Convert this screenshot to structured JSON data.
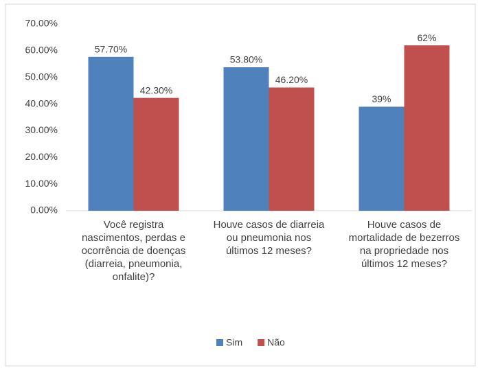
{
  "chart_data": {
    "type": "bar",
    "categories": [
      "Você registra nascimentos, perdas e ocorrência de doenças (diarreia, pneumonia, onfalite)?",
      "Houve casos de diarreia ou pneumonia nos últimos 12 meses?",
      "Houve casos de mortalidade de bezerros na propriedade nos últimos 12 meses?"
    ],
    "series": [
      {
        "name": "Sim",
        "color": "#4f81bd",
        "values": [
          57.7,
          53.8,
          39
        ],
        "value_labels": [
          "57.70%",
          "53.80%",
          "39%"
        ]
      },
      {
        "name": "Não",
        "color": "#c0504d",
        "values": [
          42.3,
          46.2,
          62
        ],
        "value_labels": [
          "42.30%",
          "46.20%",
          "62%"
        ]
      }
    ],
    "ylim": [
      0,
      70
    ],
    "yticks": [
      {
        "value": 0,
        "label": "0.00%"
      },
      {
        "value": 10,
        "label": "10.00%"
      },
      {
        "value": 20,
        "label": "20.00%"
      },
      {
        "value": 30,
        "label": "30.00%"
      },
      {
        "value": 40,
        "label": "40.00%"
      },
      {
        "value": 50,
        "label": "50.00%"
      },
      {
        "value": 60,
        "label": "60.00%"
      },
      {
        "value": 70,
        "label": "70.00%"
      }
    ],
    "grid": false,
    "legend": "bottom"
  }
}
